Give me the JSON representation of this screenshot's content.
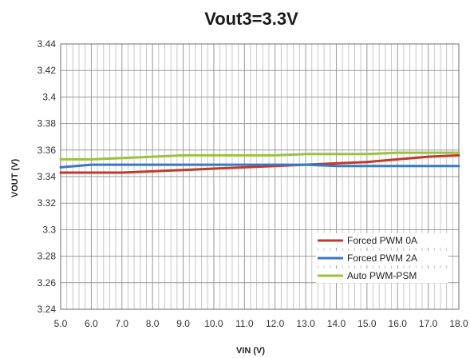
{
  "chart_data": {
    "type": "line",
    "title": "Vout3=3.3V",
    "xlabel": "VIN (V)",
    "ylabel": "VOUT (V)",
    "x": [
      5,
      6,
      7,
      8,
      9,
      10,
      11,
      12,
      13,
      14,
      15,
      16,
      17,
      18
    ],
    "xticks": [
      "5.0",
      "6.0",
      "7.0",
      "8.0",
      "9.0",
      "10.0",
      "11.0",
      "12.0",
      "13.0",
      "14.0",
      "15.0",
      "16.0",
      "17.0",
      "18.0"
    ],
    "ylim": [
      3.24,
      3.44
    ],
    "yticks": [
      "3.24",
      "3.26",
      "3.28",
      "3.3",
      "3.32",
      "3.34",
      "3.36",
      "3.38",
      "3.4",
      "3.42",
      "3.44"
    ],
    "grid": true,
    "legend_position": "bottom-right",
    "series": [
      {
        "name": "Forced PWM 0A",
        "color": "#c0392b",
        "values": [
          3.343,
          3.343,
          3.343,
          3.344,
          3.345,
          3.346,
          3.347,
          3.348,
          3.349,
          3.35,
          3.351,
          3.353,
          3.355,
          3.356
        ]
      },
      {
        "name": "Forced PWM 2A",
        "color": "#3a78c6",
        "values": [
          3.347,
          3.349,
          3.349,
          3.349,
          3.349,
          3.349,
          3.349,
          3.349,
          3.349,
          3.348,
          3.348,
          3.348,
          3.348,
          3.348
        ]
      },
      {
        "name": "Auto PWM-PSM",
        "color": "#9bc23c",
        "values": [
          3.353,
          3.353,
          3.354,
          3.355,
          3.356,
          3.356,
          3.356,
          3.356,
          3.357,
          3.357,
          3.357,
          3.358,
          3.358,
          3.358
        ]
      }
    ]
  }
}
